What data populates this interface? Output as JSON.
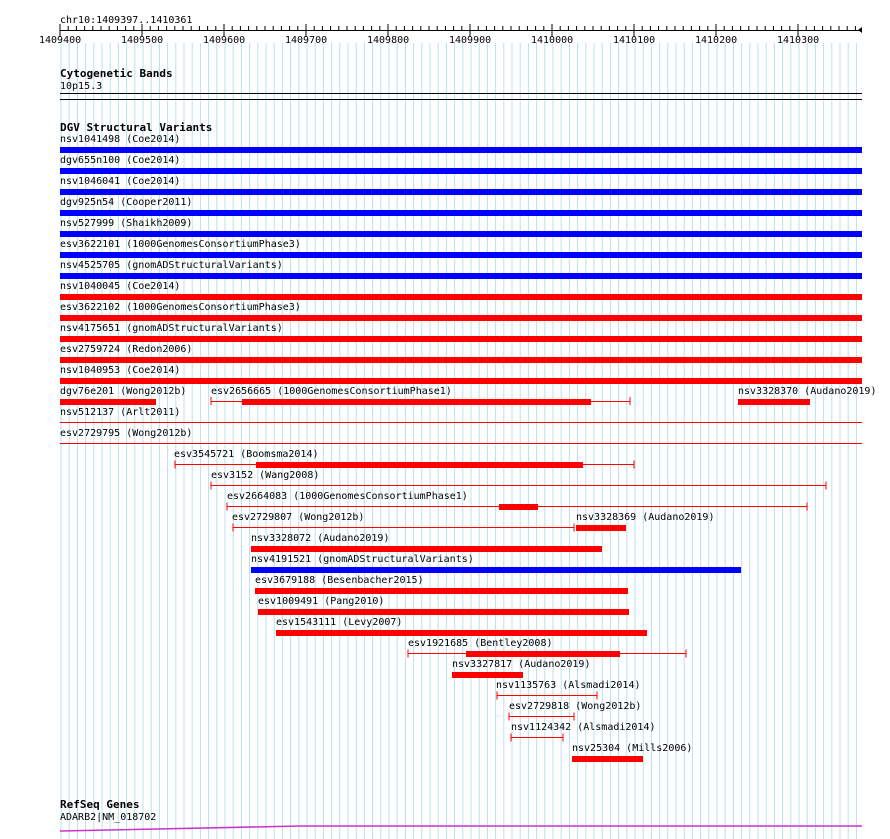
{
  "browser": {
    "position_label": "chr10:1409397..1410361",
    "ruler_ticks": [
      "1409400",
      "1409500",
      "1409600",
      "1409700",
      "1409800",
      "1409900",
      "1410000",
      "1410100",
      "1410200",
      "1410300"
    ]
  },
  "tracks": {
    "cytoband": {
      "title": "Cytogenetic Bands",
      "band_label": "10p15.3"
    },
    "dgv": {
      "title": "DGV Structural Variants",
      "full_rows": [
        {
          "label": "nsv1041498 (Coe2014)",
          "color": "#0000ff"
        },
        {
          "label": "dgv655n100 (Coe2014)",
          "color": "#0000ff"
        },
        {
          "label": "nsv1046041 (Coe2014)",
          "color": "#0000ff"
        },
        {
          "label": "dgv925n54 (Cooper2011)",
          "color": "#0000ff"
        },
        {
          "label": "nsv527999 (Shaikh2009)",
          "color": "#0000ff"
        },
        {
          "label": "esv3622101 (1000GenomesConsortiumPhase3)",
          "color": "#0000ff"
        },
        {
          "label": "nsv4525705 (gnomADStructuralVariants)",
          "color": "#0000ff"
        },
        {
          "label": "nsv1040045 (Coe2014)",
          "color": "#ff0000"
        },
        {
          "label": "esv3622102 (1000GenomesConsortiumPhase3)",
          "color": "#ff0000"
        },
        {
          "label": "nsv4175651 (gnomADStructuralVariants)",
          "color": "#ff0000"
        },
        {
          "label": "esv2759724 (Redon2006)",
          "color": "#ff0000"
        },
        {
          "label": "nsv1040953 (Coe2014)",
          "color": "#ff0000"
        }
      ],
      "mixed_row": [
        {
          "label": "dgv76e201 (Wong2012b)"
        },
        {
          "label": "esv2656665 (1000GenomesConsortiumPhase1)"
        },
        {
          "label": "nsv3328370 (Audano2019)"
        }
      ],
      "thin_rows": [
        {
          "label": "nsv512137 (Arlt2011)"
        },
        {
          "label": "esv2729795 (Wong2012b)"
        }
      ],
      "stack_rows": [
        {
          "label": "esv3545721 (Boomsma2014)",
          "color": "#ff0000"
        },
        {
          "label": "esv3152 (Wang2008)",
          "color": "#ff0000"
        },
        {
          "label": "esv2664083 (1000GenomesConsortiumPhase1)",
          "color": "#ff0000"
        },
        {
          "label": "esv2729807 (Wong2012b)",
          "color": "#ff0000"
        },
        {
          "label": "nsv3328369 (Audano2019)",
          "color": "#ff0000"
        },
        {
          "label": "nsv3328072 (Audano2019)",
          "color": "#ff0000"
        },
        {
          "label": "nsv4191521 (gnomADStructuralVariants)",
          "color": "#0000ff"
        },
        {
          "label": "esv3679188 (Besenbacher2015)",
          "color": "#ff0000"
        },
        {
          "label": "esv1009491 (Pang2010)",
          "color": "#ff0000"
        },
        {
          "label": "esv1543111 (Levy2007)",
          "color": "#ff0000"
        },
        {
          "label": "esv1921685 (Bentley2008)",
          "color": "#ff0000"
        },
        {
          "label": "nsv3327817 (Audano2019)",
          "color": "#ff0000"
        },
        {
          "label": "nsv1135763 (Alsmadi2014)",
          "color": "#ff0000"
        },
        {
          "label": "esv2729818 (Wong2012b)",
          "color": "#ff0000"
        },
        {
          "label": "nsv1124342 (Alsmadi2014)",
          "color": "#ff0000"
        },
        {
          "label": "nsv25304 (Mills2006)",
          "color": "#ff0000"
        }
      ]
    },
    "refseq": {
      "title": "RefSeq Genes",
      "gene_label": "ADARB2|NM_018702",
      "color": "#cc33cc"
    }
  }
}
